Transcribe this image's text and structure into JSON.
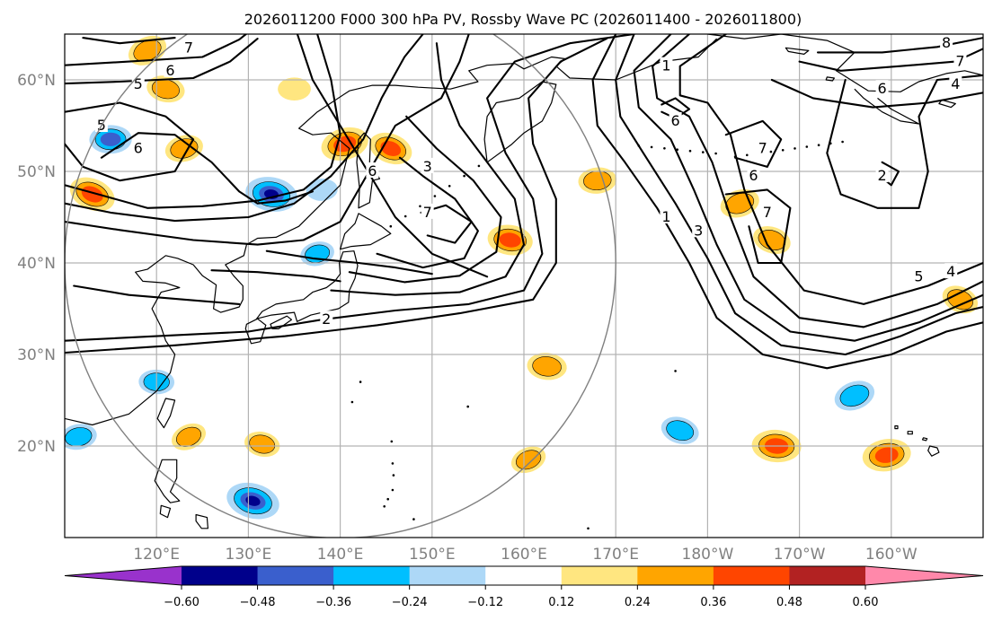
{
  "title": "2026011200 F000 300 hPa PV, Rossby Wave PC (2026011400 - 2026011800)",
  "map": {
    "projection": "PlateCarree",
    "extent": {
      "lon_min": 110,
      "lon_max": 210,
      "lat_min": 10,
      "lat_max": 65
    },
    "lon_ticks": [
      {
        "lon": 120,
        "label": "120°E"
      },
      {
        "lon": 130,
        "label": "130°E"
      },
      {
        "lon": 140,
        "label": "140°E"
      },
      {
        "lon": 150,
        "label": "150°E"
      },
      {
        "lon": 160,
        "label": "160°E"
      },
      {
        "lon": 170,
        "label": "170°E"
      },
      {
        "lon": 180,
        "label": "180°W"
      },
      {
        "lon": 190,
        "label": "170°W"
      },
      {
        "lon": 200,
        "label": "160°W"
      }
    ],
    "lat_ticks": [
      {
        "lat": 20,
        "label": "20°N"
      },
      {
        "lat": 30,
        "label": "30°N"
      },
      {
        "lat": 40,
        "label": "40°N"
      },
      {
        "lat": 50,
        "label": "50°N"
      },
      {
        "lat": 60,
        "label": "60°N"
      }
    ],
    "gridlines": true,
    "coastlines": true,
    "circle": {
      "center_lon": 140,
      "center_lat": 40,
      "radius_deg": 30,
      "color": "#808080"
    }
  },
  "pv_contours": {
    "color": "#000000",
    "labels": [
      {
        "text": "7",
        "lon": 123.5,
        "lat": 63.5
      },
      {
        "text": "6",
        "lon": 121.5,
        "lat": 61.0
      },
      {
        "text": "5",
        "lon": 118.0,
        "lat": 59.5
      },
      {
        "text": "5",
        "lon": 114.0,
        "lat": 55.0
      },
      {
        "text": "6",
        "lon": 118.0,
        "lat": 52.5
      },
      {
        "text": "6",
        "lon": 143.5,
        "lat": 50.0
      },
      {
        "text": "3",
        "lon": 149.5,
        "lat": 50.5
      },
      {
        "text": "7",
        "lon": 149.5,
        "lat": 45.5
      },
      {
        "text": "2",
        "lon": 138.5,
        "lat": 33.8
      },
      {
        "text": "1",
        "lon": 175.5,
        "lat": 61.5
      },
      {
        "text": "6",
        "lon": 176.5,
        "lat": 55.5
      },
      {
        "text": "7",
        "lon": 186.0,
        "lat": 52.5
      },
      {
        "text": "6",
        "lon": 185.0,
        "lat": 49.5
      },
      {
        "text": "7",
        "lon": 186.5,
        "lat": 45.5
      },
      {
        "text": "1",
        "lon": 175.5,
        "lat": 45.0
      },
      {
        "text": "3",
        "lon": 179.0,
        "lat": 43.5
      },
      {
        "text": "8",
        "lon": 206.0,
        "lat": 64.0
      },
      {
        "text": "7",
        "lon": 207.5,
        "lat": 62.0
      },
      {
        "text": "6",
        "lon": 199.0,
        "lat": 59.0
      },
      {
        "text": "4",
        "lon": 207.0,
        "lat": 59.5
      },
      {
        "text": "2",
        "lon": 199.0,
        "lat": 49.5
      },
      {
        "text": "5",
        "lon": 203.0,
        "lat": 38.5
      },
      {
        "text": "4",
        "lon": 206.5,
        "lat": 39.0
      }
    ]
  },
  "rossby_wave_pc": {
    "levels": [
      -0.6,
      -0.48,
      -0.36,
      -0.24,
      -0.12,
      0.12,
      0.24,
      0.36,
      0.48,
      0.6
    ],
    "colors": {
      "below_min": "#9932cc",
      "neg_060_048": "#00008b",
      "neg_048_036": "#3a5fcd",
      "neg_036_024": "#00bfff",
      "neg_024_012": "#add8f7",
      "neutral": "#ffffff",
      "pos_012_024": "#ffe680",
      "pos_024_036": "#ffa500",
      "pos_036_048": "#ff4500",
      "pos_048_060": "#b22222",
      "above_max": "#ff88aa"
    },
    "colorbar_ticks": [
      "−0.60",
      "−0.48",
      "−0.36",
      "−0.24",
      "−0.12",
      "0.12",
      "0.24",
      "0.36",
      "0.48",
      "0.60"
    ],
    "anomalies": [
      {
        "lon": 119.0,
        "lat": 63.2,
        "peak": 0.32
      },
      {
        "lon": 121.0,
        "lat": 59.0,
        "peak": 0.3
      },
      {
        "lon": 115.0,
        "lat": 53.5,
        "peak": -0.36
      },
      {
        "lon": 123.0,
        "lat": 52.5,
        "peak": 0.3
      },
      {
        "lon": 113.0,
        "lat": 47.5,
        "peak": 0.42
      },
      {
        "lon": 132.5,
        "lat": 47.5,
        "peak": -0.5
      },
      {
        "lon": 138.0,
        "lat": 48.0,
        "peak": -0.2
      },
      {
        "lon": 140.5,
        "lat": 53.0,
        "peak": 0.44
      },
      {
        "lon": 145.5,
        "lat": 52.5,
        "peak": 0.38
      },
      {
        "lon": 158.5,
        "lat": 42.5,
        "peak": 0.4
      },
      {
        "lon": 168.0,
        "lat": 49.0,
        "peak": 0.3
      },
      {
        "lon": 183.5,
        "lat": 46.5,
        "peak": 0.32
      },
      {
        "lon": 187.0,
        "lat": 42.5,
        "peak": 0.3
      },
      {
        "lon": 162.5,
        "lat": 28.7,
        "peak": 0.32
      },
      {
        "lon": 184.0,
        "lat": 30.0,
        "peak": 0.0
      },
      {
        "lon": 196.0,
        "lat": 25.5,
        "peak": -0.34
      },
      {
        "lon": 177.0,
        "lat": 21.7,
        "peak": -0.3
      },
      {
        "lon": 187.5,
        "lat": 20.0,
        "peak": 0.46
      },
      {
        "lon": 199.5,
        "lat": 19.0,
        "peak": 0.45
      },
      {
        "lon": 160.5,
        "lat": 18.5,
        "peak": 0.26
      },
      {
        "lon": 130.5,
        "lat": 14.0,
        "peak": -0.52
      },
      {
        "lon": 120.0,
        "lat": 27.0,
        "peak": -0.26
      },
      {
        "lon": 111.5,
        "lat": 21.0,
        "peak": -0.28
      },
      {
        "lon": 123.5,
        "lat": 21.0,
        "peak": 0.26
      },
      {
        "lon": 131.5,
        "lat": 20.2,
        "peak": 0.26
      },
      {
        "lon": 135.0,
        "lat": 59.0,
        "peak": 0.22
      },
      {
        "lon": 137.5,
        "lat": 41.0,
        "peak": -0.24
      },
      {
        "lon": 207.5,
        "lat": 36.0,
        "peak": 0.28
      }
    ]
  }
}
